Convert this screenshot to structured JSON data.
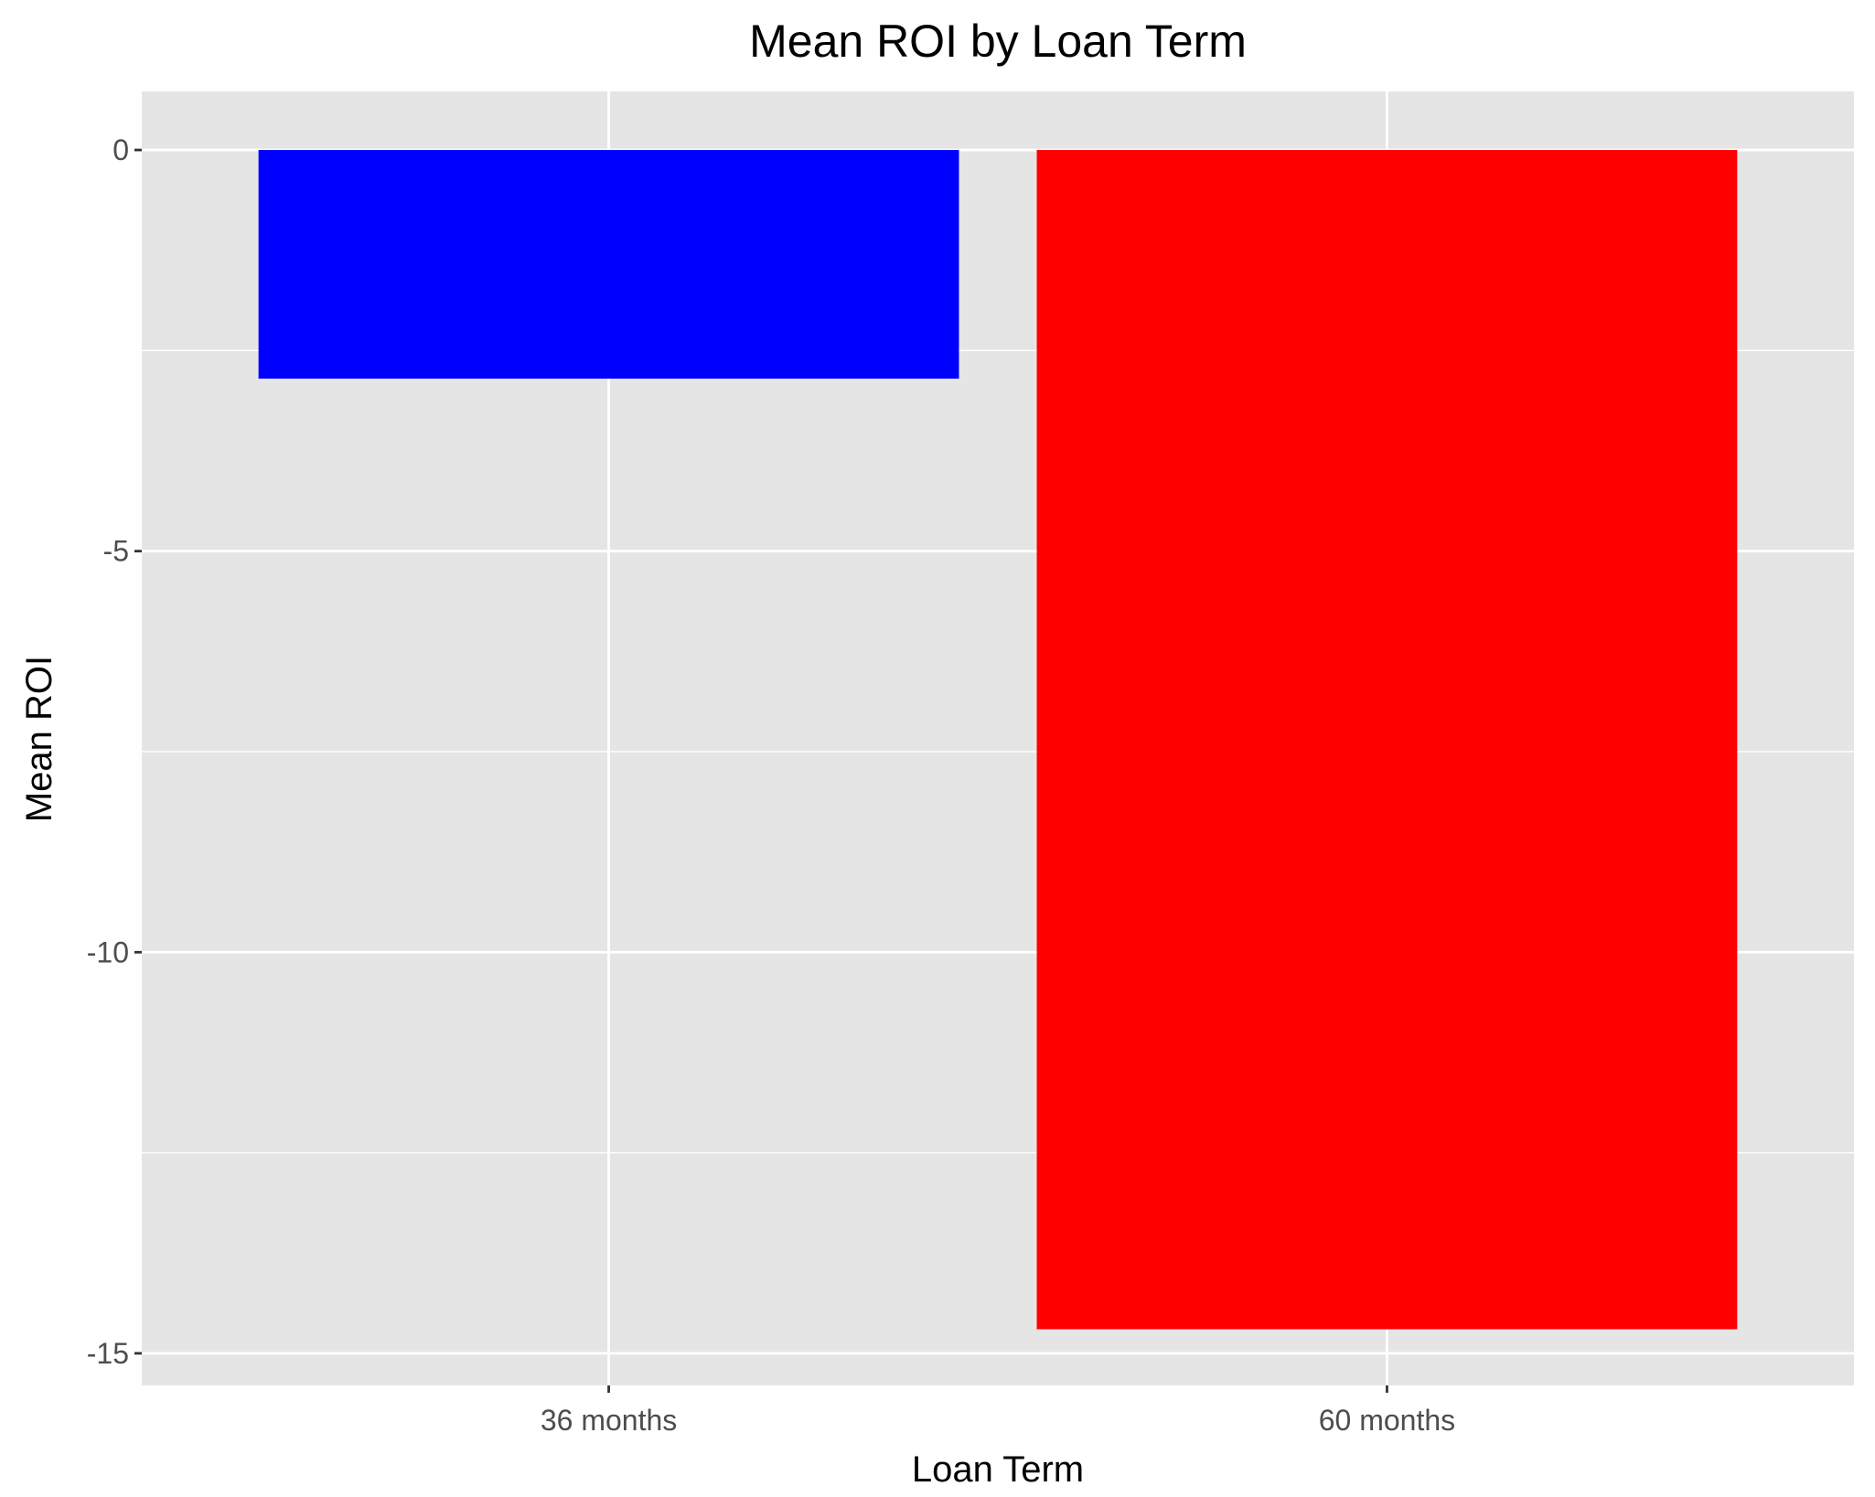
{
  "chart_data": {
    "type": "bar",
    "title": "Mean ROI by Loan Term",
    "xlabel": "Loan Term",
    "ylabel": "Mean ROI",
    "categories": [
      "36 months",
      "60 months"
    ],
    "values": [
      -2.85,
      -14.7
    ],
    "bar_colors": [
      "#0000ff",
      "#ff0000"
    ],
    "ylim": [
      -15.4,
      0.73
    ],
    "yticks": [
      0,
      -5,
      -10,
      -15
    ],
    "ytick_labels": [
      "0",
      "-5",
      "-10",
      "-15"
    ],
    "grid": true,
    "panel_background": "#e5e5e5",
    "gridline_color": "#ffffff"
  }
}
